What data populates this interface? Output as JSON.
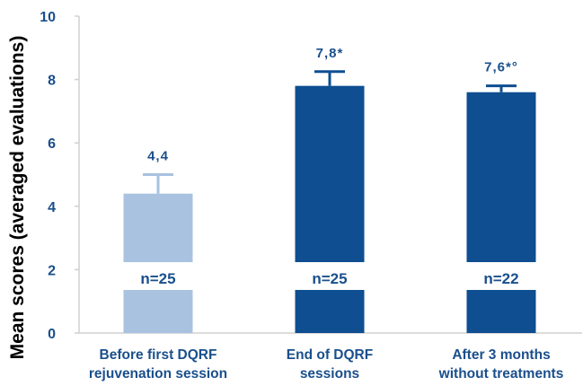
{
  "chart_data": {
    "type": "bar",
    "title": "",
    "xlabel": "",
    "ylabel": "Mean scores (averaged evaluations)",
    "ylim": [
      0,
      10
    ],
    "yticks": [
      "0",
      "2",
      "4",
      "6",
      "8",
      "10"
    ],
    "grid": false,
    "categories": [
      [
        "Before first DQRF",
        "rejuvenation session"
      ],
      [
        "End of DQRF",
        "sessions"
      ],
      [
        "After 3 months",
        "without treatments"
      ]
    ],
    "values": [
      4.4,
      7.8,
      7.6
    ],
    "errors_upper": [
      5.0,
      8.25,
      7.8
    ],
    "data_labels": [
      "4,4",
      "7,8*",
      "7,6*°"
    ],
    "n_labels": [
      "n=25",
      "n=25",
      "n=22"
    ],
    "colors": [
      "#a8c2e0",
      "#0e4e91",
      "#0e4e91"
    ],
    "text_color": "#1a4f8c",
    "axis_color": "#d0d0d0"
  }
}
